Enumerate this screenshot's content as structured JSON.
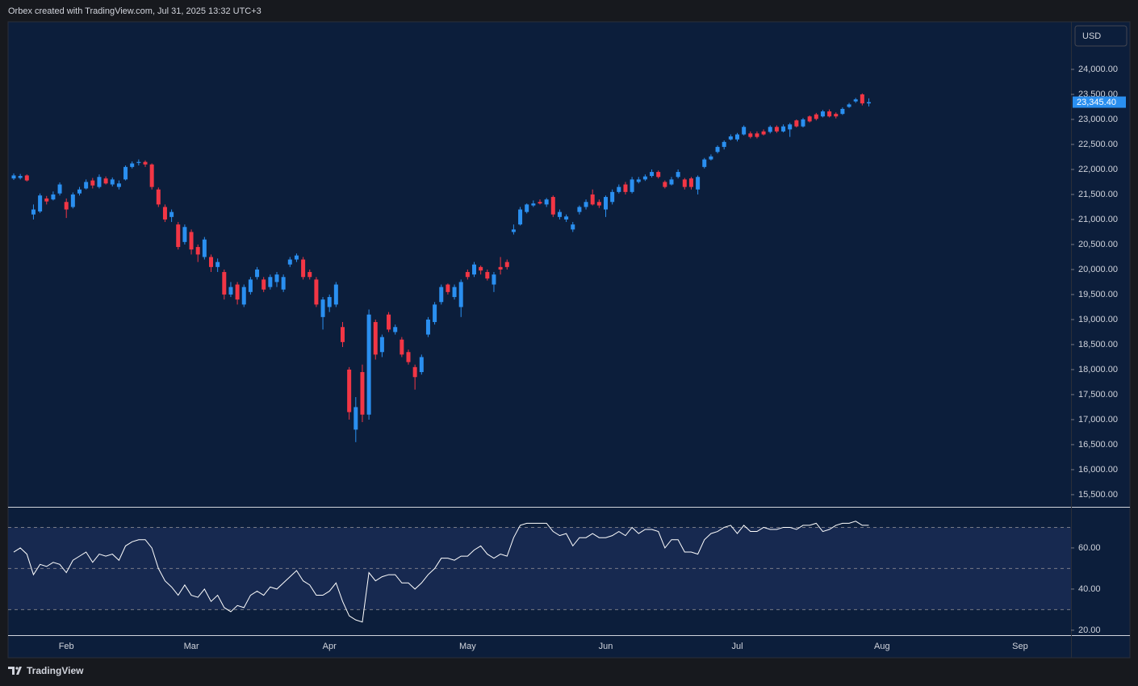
{
  "header": "Orbex created with TradingView.com, Jul 31, 2025 13:32 UTC+3",
  "footer_brand": "TradingView",
  "chart_data": [
    {
      "type": "candlestick",
      "currency": "USD",
      "up_color": "#2a8ff0",
      "down_color": "#f23645",
      "last_price": {
        "value": 23345.4,
        "label": "23,345.40"
      },
      "ylim": [
        15257,
        24935
      ],
      "yticks": [
        {
          "value": 15500,
          "label": "15,500.00"
        },
        {
          "value": 16000,
          "label": "16,000.00"
        },
        {
          "value": 16500,
          "label": "16,500.00"
        },
        {
          "value": 17000,
          "label": "17,000.00"
        },
        {
          "value": 17500,
          "label": "17,500.00"
        },
        {
          "value": 18000,
          "label": "18,000.00"
        },
        {
          "value": 18500,
          "label": "18,500.00"
        },
        {
          "value": 19000,
          "label": "19,000.00"
        },
        {
          "value": 19500,
          "label": "19,500.00"
        },
        {
          "value": 20000,
          "label": "20,000.00"
        },
        {
          "value": 20500,
          "label": "20,500.00"
        },
        {
          "value": 21000,
          "label": "21,000.00"
        },
        {
          "value": 21500,
          "label": "21,500.00"
        },
        {
          "value": 22000,
          "label": "22,000.00"
        },
        {
          "value": 22500,
          "label": "22,500.00"
        },
        {
          "value": 23000,
          "label": "23,000.00"
        },
        {
          "value": 23500,
          "label": "23,500.00"
        },
        {
          "value": 24000,
          "label": "24,000.00"
        }
      ],
      "categories": [
        null,
        null,
        null,
        null,
        null,
        null,
        null,
        null,
        "Feb",
        null,
        null,
        null,
        null,
        null,
        null,
        null,
        null,
        null,
        null,
        null,
        null,
        null,
        null,
        null,
        null,
        null,
        null,
        "Mar",
        null,
        null,
        null,
        null,
        null,
        null,
        null,
        null,
        null,
        null,
        null,
        null,
        null,
        null,
        null,
        null,
        null,
        null,
        null,
        null,
        "Apr",
        null,
        null,
        null,
        null,
        null,
        null,
        null,
        null,
        null,
        null,
        null,
        null,
        null,
        null,
        null,
        null,
        null,
        null,
        null,
        null,
        "May",
        null,
        null,
        null,
        null,
        null,
        null,
        null,
        null,
        null,
        null,
        null,
        null,
        null,
        null,
        null,
        null,
        null,
        null,
        null,
        null,
        "Jun",
        null,
        null,
        null,
        null,
        null,
        null,
        null,
        null,
        null,
        null,
        null,
        null,
        null,
        null,
        null,
        null,
        null,
        null,
        null,
        "Jul",
        null,
        null,
        null,
        null,
        null,
        null,
        null,
        null,
        null,
        null,
        null,
        null,
        null,
        null,
        null,
        null,
        null,
        null,
        null,
        null,
        null,
        "Aug",
        null,
        null,
        null,
        null,
        null,
        null,
        null,
        null,
        null,
        null,
        null,
        null,
        null,
        null,
        null,
        null,
        null,
        null,
        null,
        null,
        "Sep",
        null,
        null,
        null,
        null,
        null,
        null,
        null
      ],
      "open": [
        21820,
        21830,
        21880,
        21100,
        21160,
        21420,
        21400,
        21520,
        21350,
        21250,
        21520,
        21620,
        21780,
        21650,
        21820,
        21700,
        21650,
        21800,
        22050,
        22130,
        22150,
        22100,
        21600,
        21250,
        21050,
        20900,
        20550,
        20750,
        20450,
        20250,
        20250,
        20050,
        19950,
        19500,
        19700,
        19300,
        19550,
        19850,
        19800,
        19650,
        19750,
        19600,
        20100,
        20200,
        20200,
        19950,
        19800,
        19050,
        19250,
        19300,
        18850,
        18000,
        16800,
        17950,
        17100,
        18950,
        18350,
        19100,
        18750,
        18600,
        18350,
        18050,
        17950,
        18700,
        18950,
        19350,
        19700,
        19450,
        19250,
        19950,
        19900,
        20050,
        19950,
        19700,
        20050,
        20150,
        20750,
        20900,
        21150,
        21280,
        21350,
        21300,
        21450,
        21050,
        21000,
        20800,
        21150,
        21250,
        21500,
        21350,
        21200,
        21350,
        21550,
        21700,
        21550,
        21750,
        21800,
        21870,
        21950,
        21750,
        21700,
        21850,
        21800,
        21820,
        21600,
        22050,
        22200,
        22350,
        22450,
        22600,
        22600,
        22700,
        22720,
        22720,
        22760,
        22750,
        22850,
        22760,
        22800,
        22980,
        22860,
        23060,
        23100,
        23060,
        23160,
        23110,
        23110,
        23250,
        23360,
        23500,
        23320,
        null,
        null,
        null,
        null,
        null,
        null,
        null,
        null,
        null,
        null,
        null,
        null,
        null,
        null,
        null,
        null,
        null,
        null,
        null,
        null,
        null,
        null,
        null,
        null,
        null,
        null,
        null,
        null,
        null,
        null
      ],
      "high": [
        21920,
        21910,
        21900,
        21300,
        21520,
        21470,
        21560,
        21740,
        21420,
        21540,
        21650,
        21800,
        21830,
        21900,
        21860,
        21840,
        21780,
        22080,
        22160,
        22200,
        22180,
        22120,
        21640,
        21300,
        21200,
        20950,
        20900,
        20800,
        20500,
        20650,
        20300,
        20220,
        20000,
        19750,
        19750,
        19700,
        19850,
        20050,
        19850,
        19900,
        19950,
        19900,
        20250,
        20320,
        20250,
        20000,
        19850,
        19450,
        19500,
        19750,
        18950,
        18050,
        17450,
        18100,
        19200,
        19000,
        18700,
        19150,
        18900,
        18650,
        18400,
        18100,
        18300,
        19050,
        19350,
        19700,
        19720,
        19700,
        19800,
        20000,
        20150,
        20080,
        20000,
        19950,
        20250,
        20200,
        20900,
        21250,
        21320,
        21380,
        21400,
        21430,
        21480,
        21200,
        21100,
        20950,
        21280,
        21400,
        21600,
        21400,
        21480,
        21600,
        21700,
        21750,
        21850,
        21850,
        21900,
        22000,
        21980,
        21780,
        21850,
        22000,
        21830,
        21850,
        21880,
        22230,
        22300,
        22480,
        22580,
        22700,
        22730,
        22880,
        22760,
        22760,
        22800,
        22880,
        22880,
        22900,
        22930,
        23000,
        23030,
        23080,
        23130,
        23190,
        23200,
        23140,
        23240,
        23330,
        23430,
        23520,
        23420,
        null,
        null,
        null,
        null,
        null,
        null,
        null,
        null,
        null,
        null,
        null,
        null,
        null,
        null,
        null,
        null,
        null,
        null,
        null,
        null,
        null,
        null,
        null,
        null,
        null,
        null,
        null,
        null,
        null,
        null
      ],
      "low": [
        21790,
        21800,
        21760,
        21000,
        21130,
        21300,
        21380,
        21480,
        21030,
        21220,
        21480,
        21600,
        21620,
        21620,
        21700,
        21660,
        21600,
        21780,
        22020,
        22080,
        22050,
        21600,
        21250,
        20950,
        20950,
        20400,
        20500,
        20300,
        20150,
        20200,
        19950,
        19950,
        19400,
        19450,
        19300,
        19250,
        19500,
        19800,
        19550,
        19600,
        19650,
        19550,
        20050,
        20150,
        19800,
        19800,
        19250,
        18800,
        19150,
        19250,
        18450,
        17000,
        16550,
        16950,
        17000,
        18200,
        18250,
        18750,
        18700,
        18250,
        18100,
        17600,
        17900,
        18650,
        18900,
        19300,
        19500,
        19400,
        19050,
        19800,
        19850,
        19900,
        19780,
        19550,
        19900,
        20000,
        20700,
        20880,
        21120,
        21250,
        21300,
        21250,
        21050,
        21000,
        20950,
        20750,
        21100,
        21200,
        21280,
        21230,
        21050,
        21300,
        21520,
        21500,
        21520,
        21720,
        21770,
        21840,
        21820,
        21620,
        21680,
        21820,
        21600,
        21600,
        21500,
        22020,
        22180,
        22320,
        22400,
        22580,
        22560,
        22680,
        22620,
        22620,
        22680,
        22720,
        22730,
        22740,
        22650,
        22840,
        22840,
        22940,
        22980,
        23040,
        23040,
        23020,
        23090,
        23230,
        23330,
        23280,
        23260,
        null,
        null,
        null,
        null,
        null,
        null,
        null,
        null,
        null,
        null,
        null,
        null,
        null,
        null,
        null,
        null,
        null,
        null,
        null,
        null,
        null,
        null,
        null,
        null,
        null,
        null,
        null,
        null,
        null,
        null
      ],
      "close": [
        21880,
        21870,
        21780,
        21200,
        21480,
        21360,
        21500,
        21700,
        21200,
        21500,
        21600,
        21750,
        21680,
        21850,
        21720,
        21800,
        21720,
        22050,
        22120,
        22150,
        22100,
        21650,
        21300,
        21000,
        21150,
        20450,
        20850,
        20400,
        20300,
        20600,
        20050,
        20150,
        19500,
        19650,
        19400,
        19650,
        19800,
        20000,
        19600,
        19850,
        19900,
        19850,
        20200,
        20280,
        19850,
        19850,
        19300,
        19400,
        19450,
        19700,
        18550,
        17150,
        17250,
        17100,
        19100,
        18300,
        18650,
        18800,
        18850,
        18300,
        18150,
        17850,
        18250,
        19000,
        19300,
        19650,
        19550,
        19650,
        19750,
        19850,
        20100,
        19980,
        19820,
        19900,
        20000,
        20050,
        20800,
        21200,
        21300,
        21320,
        21320,
        21400,
        21100,
        21150,
        21060,
        20900,
        21250,
        21350,
        21300,
        21280,
        21450,
        21550,
        21650,
        21550,
        21800,
        21800,
        21860,
        21950,
        21850,
        21650,
        21800,
        21950,
        21650,
        21650,
        21850,
        22200,
        22260,
        22450,
        22550,
        22660,
        22700,
        22850,
        22650,
        22650,
        22700,
        22850,
        22760,
        22860,
        22900,
        22860,
        23000,
        22960,
        23010,
        23160,
        23060,
        23060,
        23210,
        23300,
        23400,
        23320,
        23345.4,
        null,
        null,
        null,
        null,
        null,
        null,
        null,
        null,
        null,
        null,
        null,
        null,
        null,
        null,
        null,
        null,
        null,
        null,
        null,
        null,
        null,
        null,
        null,
        null,
        null,
        null,
        null,
        null,
        null,
        null
      ]
    },
    {
      "type": "line",
      "color": "#ffffff",
      "levels": [
        30,
        50,
        70
      ],
      "band_color": "#172950",
      "ylim": [
        17.6,
        79.2
      ],
      "yticks": [
        {
          "value": 20,
          "label": "20.00"
        },
        {
          "value": 40,
          "label": "40.00"
        },
        {
          "value": 60,
          "label": "60.00"
        }
      ],
      "values": [
        58,
        60,
        57,
        47,
        52,
        51,
        53,
        52,
        48,
        54,
        56,
        58,
        53,
        57,
        56,
        57,
        54,
        61,
        63,
        64,
        64,
        60,
        50,
        44,
        41,
        37,
        42,
        37,
        36,
        40,
        34,
        37,
        31,
        29,
        32,
        31,
        37,
        39,
        37,
        41,
        40,
        43,
        46,
        49,
        44,
        42,
        37,
        37,
        39,
        43,
        34,
        27,
        25,
        24,
        48,
        44,
        46,
        47,
        47,
        43,
        43,
        40,
        43,
        47,
        50,
        55,
        55,
        54,
        56,
        56,
        59,
        61,
        57,
        55,
        57,
        56,
        65,
        71,
        72,
        72,
        72,
        72,
        68,
        66,
        67,
        61,
        65,
        65,
        67,
        65,
        65,
        66,
        68,
        66,
        70,
        67,
        69,
        69,
        68,
        60,
        64,
        64,
        58,
        58,
        57,
        64,
        67,
        68,
        70,
        71,
        67,
        71,
        68,
        68,
        70,
        69,
        69,
        70,
        70,
        69,
        71,
        71,
        72,
        68,
        69,
        71,
        72,
        72,
        73,
        71,
        71
      ]
    }
  ]
}
